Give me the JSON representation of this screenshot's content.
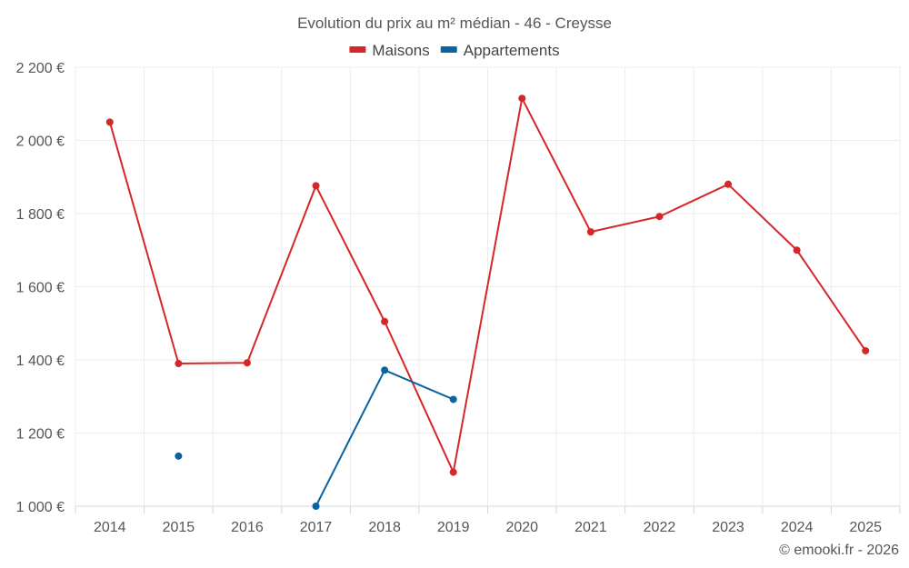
{
  "chart_data": {
    "type": "line",
    "title": "Evolution du prix au m² médian - 46 - Creysse",
    "categories": [
      "2014",
      "2015",
      "2016",
      "2017",
      "2018",
      "2019",
      "2020",
      "2021",
      "2022",
      "2023",
      "2024",
      "2025"
    ],
    "series": [
      {
        "name": "Maisons",
        "color": "#d62728",
        "values": [
          2050,
          1390,
          1392,
          1876,
          1505,
          1093,
          2115,
          1750,
          1792,
          1880,
          1700,
          1425
        ]
      },
      {
        "name": "Appartements",
        "color": "#0b63a0",
        "values": [
          null,
          1137,
          null,
          1000,
          1372,
          1292,
          null,
          null,
          null,
          null,
          null,
          null
        ]
      }
    ],
    "ylim": [
      1000,
      2200
    ],
    "yticks": [
      1000,
      1200,
      1400,
      1600,
      1800,
      2000,
      2200
    ],
    "ytick_labels": [
      "1 000 €",
      "1 200 €",
      "1 400 €",
      "1 600 €",
      "1 800 €",
      "2 000 €",
      "2 200 €"
    ],
    "grid": true,
    "legend": "top-center",
    "xlabel": "",
    "ylabel": ""
  },
  "credit": "© emooki.fr - 2026"
}
